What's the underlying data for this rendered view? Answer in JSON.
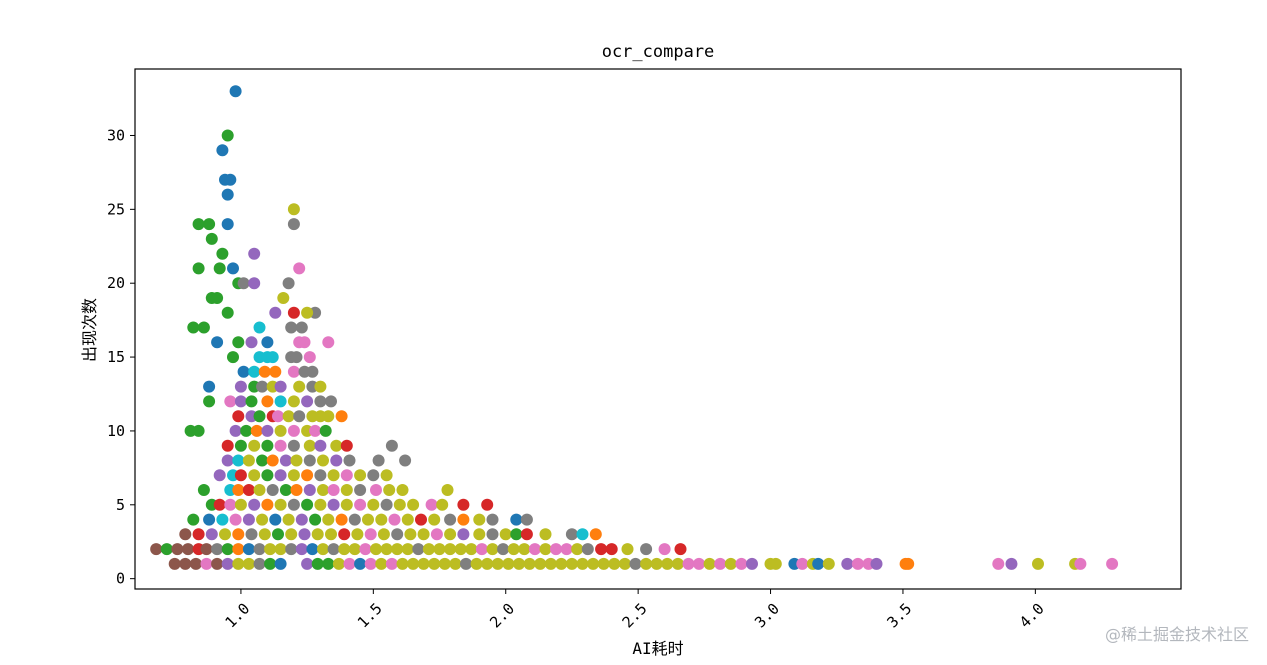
{
  "chart_data": {
    "type": "scatter",
    "title": "ocr_compare",
    "xlabel": "AI耗时",
    "ylabel": "出现次数",
    "xlim": [
      0.6,
      4.55
    ],
    "ylim": [
      -0.7,
      34.5
    ],
    "xticks": [
      1.0,
      1.5,
      2.0,
      2.5,
      3.0,
      3.5,
      4.0
    ],
    "xtick_labels": [
      "1.0",
      "1.5",
      "2.0",
      "2.5",
      "3.0",
      "3.5",
      "4.0"
    ],
    "xtick_rotation": -45,
    "yticks": [
      0,
      5,
      10,
      15,
      20,
      25,
      30
    ],
    "ytick_labels": [
      "0",
      "5",
      "10",
      "15",
      "20",
      "25",
      "30"
    ],
    "grid": false,
    "legend": "none",
    "palette": [
      "#1f77b4",
      "#ff7f0e",
      "#2ca02c",
      "#d62728",
      "#9467bd",
      "#8c564b",
      "#e377c2",
      "#7f7f7f",
      "#bcbd22",
      "#17becf"
    ],
    "points": [
      [
        0.98,
        33,
        0
      ],
      [
        0.95,
        30,
        2
      ],
      [
        0.93,
        29,
        0
      ],
      [
        0.94,
        27,
        0
      ],
      [
        0.96,
        27,
        0
      ],
      [
        0.95,
        26,
        0
      ],
      [
        0.95,
        24,
        0
      ],
      [
        0.84,
        24,
        2
      ],
      [
        0.88,
        24,
        2
      ],
      [
        1.2,
        25,
        8
      ],
      [
        1.2,
        24,
        7
      ],
      [
        0.89,
        23,
        2
      ],
      [
        0.93,
        22,
        2
      ],
      [
        1.05,
        22,
        4
      ],
      [
        0.84,
        21,
        2
      ],
      [
        0.92,
        21,
        2
      ],
      [
        0.97,
        21,
        0
      ],
      [
        1.22,
        21,
        6
      ],
      [
        0.99,
        20,
        2
      ],
      [
        1.01,
        20,
        7
      ],
      [
        1.05,
        20,
        4
      ],
      [
        1.18,
        20,
        7
      ],
      [
        0.89,
        19,
        2
      ],
      [
        0.91,
        19,
        2
      ],
      [
        1.16,
        19,
        8
      ],
      [
        0.95,
        18,
        2
      ],
      [
        1.13,
        18,
        4
      ],
      [
        1.28,
        18,
        7
      ],
      [
        1.2,
        18,
        3
      ],
      [
        1.25,
        18,
        8
      ],
      [
        0.82,
        17,
        2
      ],
      [
        0.86,
        17,
        2
      ],
      [
        1.07,
        17,
        9
      ],
      [
        1.19,
        17,
        7
      ],
      [
        1.23,
        17,
        7
      ],
      [
        0.91,
        16,
        0
      ],
      [
        0.99,
        16,
        2
      ],
      [
        1.04,
        16,
        4
      ],
      [
        1.1,
        16,
        0
      ],
      [
        1.24,
        16,
        6
      ],
      [
        1.22,
        16,
        6
      ],
      [
        1.33,
        16,
        6
      ],
      [
        0.97,
        15,
        2
      ],
      [
        1.07,
        15,
        9
      ],
      [
        1.1,
        15,
        9
      ],
      [
        1.12,
        15,
        9
      ],
      [
        1.19,
        15,
        7
      ],
      [
        1.21,
        15,
        7
      ],
      [
        1.26,
        15,
        6
      ],
      [
        1.01,
        14,
        0
      ],
      [
        1.05,
        14,
        9
      ],
      [
        1.09,
        14,
        1
      ],
      [
        1.13,
        14,
        1
      ],
      [
        1.2,
        14,
        6
      ],
      [
        1.24,
        14,
        7
      ],
      [
        1.27,
        14,
        7
      ],
      [
        0.88,
        13,
        0
      ],
      [
        1.0,
        13,
        4
      ],
      [
        1.05,
        13,
        2
      ],
      [
        1.08,
        13,
        7
      ],
      [
        1.12,
        13,
        8
      ],
      [
        1.15,
        13,
        4
      ],
      [
        1.22,
        13,
        8
      ],
      [
        1.27,
        13,
        7
      ],
      [
        1.3,
        13,
        8
      ],
      [
        0.88,
        12,
        2
      ],
      [
        0.96,
        12,
        6
      ],
      [
        1.0,
        12,
        4
      ],
      [
        1.04,
        12,
        2
      ],
      [
        1.1,
        12,
        1
      ],
      [
        1.15,
        12,
        9
      ],
      [
        1.2,
        12,
        8
      ],
      [
        1.25,
        12,
        4
      ],
      [
        1.3,
        12,
        7
      ],
      [
        1.34,
        12,
        7
      ],
      [
        0.99,
        11,
        3
      ],
      [
        1.04,
        11,
        4
      ],
      [
        1.07,
        11,
        2
      ],
      [
        1.12,
        11,
        3
      ],
      [
        1.14,
        11,
        6
      ],
      [
        1.18,
        11,
        8
      ],
      [
        1.22,
        11,
        7
      ],
      [
        1.27,
        11,
        8
      ],
      [
        1.3,
        11,
        8
      ],
      [
        1.33,
        11,
        8
      ],
      [
        1.38,
        11,
        1
      ],
      [
        0.81,
        10,
        2
      ],
      [
        0.84,
        10,
        2
      ],
      [
        0.98,
        10,
        4
      ],
      [
        1.02,
        10,
        2
      ],
      [
        1.06,
        10,
        1
      ],
      [
        1.1,
        10,
        4
      ],
      [
        1.15,
        10,
        8
      ],
      [
        1.2,
        10,
        6
      ],
      [
        1.25,
        10,
        8
      ],
      [
        1.28,
        10,
        6
      ],
      [
        1.32,
        10,
        2
      ],
      [
        0.95,
        9,
        3
      ],
      [
        1.0,
        9,
        2
      ],
      [
        1.05,
        9,
        8
      ],
      [
        1.1,
        9,
        2
      ],
      [
        1.15,
        9,
        6
      ],
      [
        1.2,
        9,
        7
      ],
      [
        1.26,
        9,
        8
      ],
      [
        1.3,
        9,
        4
      ],
      [
        1.36,
        9,
        8
      ],
      [
        1.4,
        9,
        3
      ],
      [
        1.57,
        9,
        7
      ],
      [
        0.95,
        8,
        4
      ],
      [
        0.99,
        8,
        9
      ],
      [
        1.03,
        8,
        8
      ],
      [
        1.08,
        8,
        2
      ],
      [
        1.12,
        8,
        1
      ],
      [
        1.17,
        8,
        4
      ],
      [
        1.21,
        8,
        8
      ],
      [
        1.26,
        8,
        7
      ],
      [
        1.31,
        8,
        8
      ],
      [
        1.36,
        8,
        4
      ],
      [
        1.41,
        8,
        7
      ],
      [
        1.52,
        8,
        7
      ],
      [
        1.62,
        8,
        7
      ],
      [
        0.92,
        7,
        4
      ],
      [
        0.97,
        7,
        9
      ],
      [
        1.0,
        7,
        3
      ],
      [
        1.05,
        7,
        8
      ],
      [
        1.1,
        7,
        2
      ],
      [
        1.15,
        7,
        4
      ],
      [
        1.2,
        7,
        8
      ],
      [
        1.25,
        7,
        1
      ],
      [
        1.3,
        7,
        7
      ],
      [
        1.35,
        7,
        8
      ],
      [
        1.4,
        7,
        6
      ],
      [
        1.45,
        7,
        8
      ],
      [
        1.5,
        7,
        7
      ],
      [
        1.55,
        7,
        8
      ],
      [
        0.86,
        6,
        2
      ],
      [
        0.96,
        6,
        9
      ],
      [
        0.99,
        6,
        1
      ],
      [
        1.03,
        6,
        3
      ],
      [
        1.07,
        6,
        8
      ],
      [
        1.12,
        6,
        7
      ],
      [
        1.17,
        6,
        2
      ],
      [
        1.21,
        6,
        1
      ],
      [
        1.26,
        6,
        4
      ],
      [
        1.31,
        6,
        8
      ],
      [
        1.35,
        6,
        6
      ],
      [
        1.4,
        6,
        8
      ],
      [
        1.45,
        6,
        7
      ],
      [
        1.51,
        6,
        6
      ],
      [
        1.56,
        6,
        8
      ],
      [
        1.61,
        6,
        8
      ],
      [
        1.78,
        6,
        8
      ],
      [
        0.89,
        5,
        2
      ],
      [
        0.92,
        5,
        3
      ],
      [
        0.96,
        5,
        6
      ],
      [
        1.0,
        5,
        8
      ],
      [
        1.05,
        5,
        4
      ],
      [
        1.1,
        5,
        1
      ],
      [
        1.15,
        5,
        8
      ],
      [
        1.2,
        5,
        7
      ],
      [
        1.25,
        5,
        2
      ],
      [
        1.3,
        5,
        8
      ],
      [
        1.35,
        5,
        4
      ],
      [
        1.4,
        5,
        8
      ],
      [
        1.45,
        5,
        6
      ],
      [
        1.5,
        5,
        8
      ],
      [
        1.55,
        5,
        7
      ],
      [
        1.6,
        5,
        8
      ],
      [
        1.65,
        5,
        8
      ],
      [
        1.72,
        5,
        6
      ],
      [
        1.76,
        5,
        8
      ],
      [
        1.84,
        5,
        3
      ],
      [
        1.93,
        5,
        3
      ],
      [
        0.82,
        4,
        2
      ],
      [
        0.88,
        4,
        0
      ],
      [
        0.93,
        4,
        9
      ],
      [
        0.98,
        4,
        6
      ],
      [
        1.03,
        4,
        4
      ],
      [
        1.08,
        4,
        8
      ],
      [
        1.13,
        4,
        0
      ],
      [
        1.18,
        4,
        8
      ],
      [
        1.23,
        4,
        4
      ],
      [
        1.28,
        4,
        2
      ],
      [
        1.33,
        4,
        8
      ],
      [
        1.38,
        4,
        1
      ],
      [
        1.43,
        4,
        7
      ],
      [
        1.48,
        4,
        8
      ],
      [
        1.53,
        4,
        8
      ],
      [
        1.58,
        4,
        6
      ],
      [
        1.63,
        4,
        8
      ],
      [
        1.68,
        4,
        3
      ],
      [
        1.73,
        4,
        8
      ],
      [
        1.79,
        4,
        7
      ],
      [
        1.84,
        4,
        1
      ],
      [
        1.9,
        4,
        8
      ],
      [
        1.95,
        4,
        7
      ],
      [
        2.04,
        4,
        0
      ],
      [
        2.08,
        4,
        7
      ],
      [
        0.79,
        3,
        5
      ],
      [
        0.84,
        3,
        3
      ],
      [
        0.89,
        3,
        4
      ],
      [
        0.94,
        3,
        8
      ],
      [
        0.99,
        3,
        1
      ],
      [
        1.04,
        3,
        7
      ],
      [
        1.09,
        3,
        8
      ],
      [
        1.14,
        3,
        2
      ],
      [
        1.19,
        3,
        8
      ],
      [
        1.24,
        3,
        4
      ],
      [
        1.29,
        3,
        8
      ],
      [
        1.34,
        3,
        8
      ],
      [
        1.39,
        3,
        3
      ],
      [
        1.44,
        3,
        8
      ],
      [
        1.49,
        3,
        6
      ],
      [
        1.54,
        3,
        8
      ],
      [
        1.59,
        3,
        7
      ],
      [
        1.64,
        3,
        8
      ],
      [
        1.69,
        3,
        8
      ],
      [
        1.74,
        3,
        6
      ],
      [
        1.79,
        3,
        8
      ],
      [
        1.84,
        3,
        4
      ],
      [
        1.9,
        3,
        8
      ],
      [
        1.95,
        3,
        7
      ],
      [
        2.0,
        3,
        8
      ],
      [
        2.04,
        3,
        2
      ],
      [
        2.08,
        3,
        3
      ],
      [
        2.15,
        3,
        8
      ],
      [
        2.25,
        3,
        7
      ],
      [
        2.29,
        3,
        9
      ],
      [
        2.34,
        3,
        1
      ],
      [
        0.68,
        2,
        5
      ],
      [
        0.72,
        2,
        2
      ],
      [
        0.76,
        2,
        5
      ],
      [
        0.8,
        2,
        5
      ],
      [
        0.84,
        2,
        3
      ],
      [
        0.87,
        2,
        5
      ],
      [
        0.91,
        2,
        7
      ],
      [
        0.95,
        2,
        2
      ],
      [
        0.99,
        2,
        1
      ],
      [
        1.03,
        2,
        0
      ],
      [
        1.07,
        2,
        7
      ],
      [
        1.11,
        2,
        8
      ],
      [
        1.15,
        2,
        8
      ],
      [
        1.19,
        2,
        7
      ],
      [
        1.23,
        2,
        4
      ],
      [
        1.27,
        2,
        0
      ],
      [
        1.31,
        2,
        8
      ],
      [
        1.35,
        2,
        7
      ],
      [
        1.39,
        2,
        8
      ],
      [
        1.43,
        2,
        8
      ],
      [
        1.47,
        2,
        6
      ],
      [
        1.51,
        2,
        8
      ],
      [
        1.55,
        2,
        8
      ],
      [
        1.59,
        2,
        8
      ],
      [
        1.63,
        2,
        8
      ],
      [
        1.67,
        2,
        7
      ],
      [
        1.71,
        2,
        8
      ],
      [
        1.75,
        2,
        8
      ],
      [
        1.79,
        2,
        8
      ],
      [
        1.83,
        2,
        8
      ],
      [
        1.87,
        2,
        8
      ],
      [
        1.91,
        2,
        6
      ],
      [
        1.95,
        2,
        8
      ],
      [
        1.99,
        2,
        7
      ],
      [
        2.03,
        2,
        8
      ],
      [
        2.07,
        2,
        8
      ],
      [
        2.11,
        2,
        6
      ],
      [
        2.15,
        2,
        8
      ],
      [
        2.19,
        2,
        6
      ],
      [
        2.23,
        2,
        6
      ],
      [
        2.27,
        2,
        8
      ],
      [
        2.31,
        2,
        7
      ],
      [
        2.36,
        2,
        3
      ],
      [
        2.4,
        2,
        3
      ],
      [
        2.46,
        2,
        8
      ],
      [
        2.53,
        2,
        7
      ],
      [
        2.6,
        2,
        6
      ],
      [
        2.66,
        2,
        3
      ],
      [
        0.75,
        1,
        5
      ],
      [
        0.79,
        1,
        5
      ],
      [
        0.83,
        1,
        5
      ],
      [
        0.87,
        1,
        6
      ],
      [
        0.91,
        1,
        5
      ],
      [
        0.95,
        1,
        4
      ],
      [
        0.99,
        1,
        8
      ],
      [
        1.03,
        1,
        8
      ],
      [
        1.07,
        1,
        7
      ],
      [
        1.11,
        1,
        2
      ],
      [
        1.15,
        1,
        0
      ],
      [
        1.25,
        1,
        4
      ],
      [
        1.29,
        1,
        2
      ],
      [
        1.33,
        1,
        2
      ],
      [
        1.37,
        1,
        8
      ],
      [
        1.41,
        1,
        6
      ],
      [
        1.45,
        1,
        0
      ],
      [
        1.49,
        1,
        6
      ],
      [
        1.53,
        1,
        8
      ],
      [
        1.57,
        1,
        6
      ],
      [
        1.61,
        1,
        8
      ],
      [
        1.65,
        1,
        8
      ],
      [
        1.69,
        1,
        8
      ],
      [
        1.73,
        1,
        8
      ],
      [
        1.77,
        1,
        8
      ],
      [
        1.81,
        1,
        8
      ],
      [
        1.85,
        1,
        7
      ],
      [
        1.89,
        1,
        8
      ],
      [
        1.93,
        1,
        8
      ],
      [
        1.97,
        1,
        8
      ],
      [
        2.01,
        1,
        8
      ],
      [
        2.05,
        1,
        8
      ],
      [
        2.09,
        1,
        8
      ],
      [
        2.13,
        1,
        8
      ],
      [
        2.17,
        1,
        8
      ],
      [
        2.21,
        1,
        8
      ],
      [
        2.25,
        1,
        8
      ],
      [
        2.29,
        1,
        8
      ],
      [
        2.33,
        1,
        8
      ],
      [
        2.37,
        1,
        8
      ],
      [
        2.41,
        1,
        8
      ],
      [
        2.45,
        1,
        8
      ],
      [
        2.49,
        1,
        7
      ],
      [
        2.53,
        1,
        8
      ],
      [
        2.57,
        1,
        8
      ],
      [
        2.61,
        1,
        8
      ],
      [
        2.65,
        1,
        8
      ],
      [
        2.69,
        1,
        6
      ],
      [
        2.73,
        1,
        6
      ],
      [
        2.77,
        1,
        8
      ],
      [
        2.81,
        1,
        6
      ],
      [
        2.85,
        1,
        8
      ],
      [
        2.89,
        1,
        6
      ],
      [
        2.93,
        1,
        4
      ],
      [
        3.0,
        1,
        8
      ],
      [
        3.02,
        1,
        8
      ],
      [
        3.09,
        1,
        0
      ],
      [
        3.12,
        1,
        6
      ],
      [
        3.16,
        1,
        8
      ],
      [
        3.18,
        1,
        0
      ],
      [
        3.22,
        1,
        8
      ],
      [
        3.29,
        1,
        4
      ],
      [
        3.33,
        1,
        6
      ],
      [
        3.37,
        1,
        6
      ],
      [
        3.4,
        1,
        4
      ],
      [
        3.51,
        1,
        1
      ],
      [
        3.52,
        1,
        1
      ],
      [
        3.86,
        1,
        6
      ],
      [
        3.91,
        1,
        4
      ],
      [
        4.01,
        1,
        8
      ],
      [
        4.15,
        1,
        8
      ],
      [
        4.17,
        1,
        6
      ],
      [
        4.29,
        1,
        6
      ]
    ]
  },
  "watermark": "@稀土掘金技术社区"
}
